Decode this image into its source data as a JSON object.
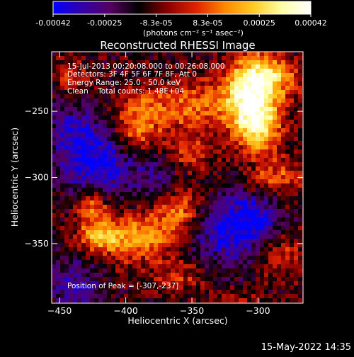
{
  "colorbar": {
    "ticks": [
      "-0.00042",
      "-0.00025",
      "-8.3e-05",
      "8.3e-05",
      "0.00025",
      "0.00042"
    ],
    "unit_label": "(photons cm⁻² s⁻¹ asec⁻²)",
    "colors": [
      "#0000ff",
      "#3300aa",
      "#55005f",
      "#000000",
      "#8a0000",
      "#e02200",
      "#ff8800",
      "#ffcc22",
      "#ffffaa",
      "#ffffff"
    ]
  },
  "chart_data": {
    "type": "heatmap",
    "title": "Reconstructed RHESSI Image",
    "xlabel": "Heliocentric X (arcsec)",
    "ylabel": "Heliocentric Y (arcsec)",
    "xlim": [
      -456,
      -266
    ],
    "ylim": [
      -395,
      -205
    ],
    "x_ticks": [
      -450,
      -400,
      -350,
      -300
    ],
    "y_ticks": [
      -250,
      -300,
      -350
    ],
    "x_tick_labels": [
      "−450",
      "−400",
      "−350",
      "−300"
    ],
    "y_tick_labels": [
      "−250",
      "−300",
      "−350"
    ],
    "color_range": [
      -0.00042,
      0.00042
    ],
    "info_lines": [
      "15-Jul-2013 00:20:08.000 to 00:26:08.000",
      "Detectors: 3F 4F 5F 6F 7F 8F, Att 0",
      "Energy Range: 25.0 - 50.0 keV",
      "Clean    Total counts: 1.48E+04"
    ],
    "peak_label": "Position of Peak = [-307,-237]",
    "peak": [
      -307,
      -237
    ],
    "sources": [
      {
        "x": -307,
        "y": -237,
        "value": 0.00042,
        "sx": 13,
        "sy": 20
      },
      {
        "x": -300,
        "y": -262,
        "value": 0.00034,
        "sx": 12,
        "sy": 14
      },
      {
        "x": -290,
        "y": -225,
        "value": 0.0003,
        "sx": 14,
        "sy": 12
      },
      {
        "x": -345,
        "y": -245,
        "value": 0.00022,
        "sx": 18,
        "sy": 13
      },
      {
        "x": -385,
        "y": -250,
        "value": 0.00022,
        "sx": 16,
        "sy": 12
      },
      {
        "x": -355,
        "y": -283,
        "value": 0.0002,
        "sx": 14,
        "sy": 12
      },
      {
        "x": -392,
        "y": -270,
        "value": 0.00018,
        "sx": 10,
        "sy": 10
      },
      {
        "x": -440,
        "y": -225,
        "value": 0.00016,
        "sx": 9,
        "sy": 9
      },
      {
        "x": -395,
        "y": -345,
        "value": 0.0003,
        "sx": 20,
        "sy": 13
      },
      {
        "x": -360,
        "y": -322,
        "value": 0.00028,
        "sx": 13,
        "sy": 14
      },
      {
        "x": -425,
        "y": -322,
        "value": 0.00024,
        "sx": 8,
        "sy": 10
      },
      {
        "x": -422,
        "y": -345,
        "value": 0.0002,
        "sx": 11,
        "sy": 8
      },
      {
        "x": -285,
        "y": -300,
        "value": 0.0002,
        "sx": 14,
        "sy": 10
      },
      {
        "x": -360,
        "y": -375,
        "value": 0.00014,
        "sx": 14,
        "sy": 10
      },
      {
        "x": -282,
        "y": -360,
        "value": 0.00014,
        "sx": 12,
        "sy": 12
      },
      {
        "x": -315,
        "y": -395,
        "value": 0.00012,
        "sx": 12,
        "sy": 8
      },
      {
        "x": -420,
        "y": -290,
        "value": -0.00028,
        "sx": 20,
        "sy": 18
      },
      {
        "x": -325,
        "y": -340,
        "value": -0.00026,
        "sx": 18,
        "sy": 20
      },
      {
        "x": -440,
        "y": -262,
        "value": -0.00018,
        "sx": 14,
        "sy": 16
      },
      {
        "x": -370,
        "y": -300,
        "value": -0.0002,
        "sx": 14,
        "sy": 14
      },
      {
        "x": -440,
        "y": -380,
        "value": -0.0002,
        "sx": 14,
        "sy": 14
      },
      {
        "x": -300,
        "y": -330,
        "value": -0.00022,
        "sx": 12,
        "sy": 12
      }
    ]
  },
  "footer": {
    "date": "15-May-2022 14:35"
  }
}
